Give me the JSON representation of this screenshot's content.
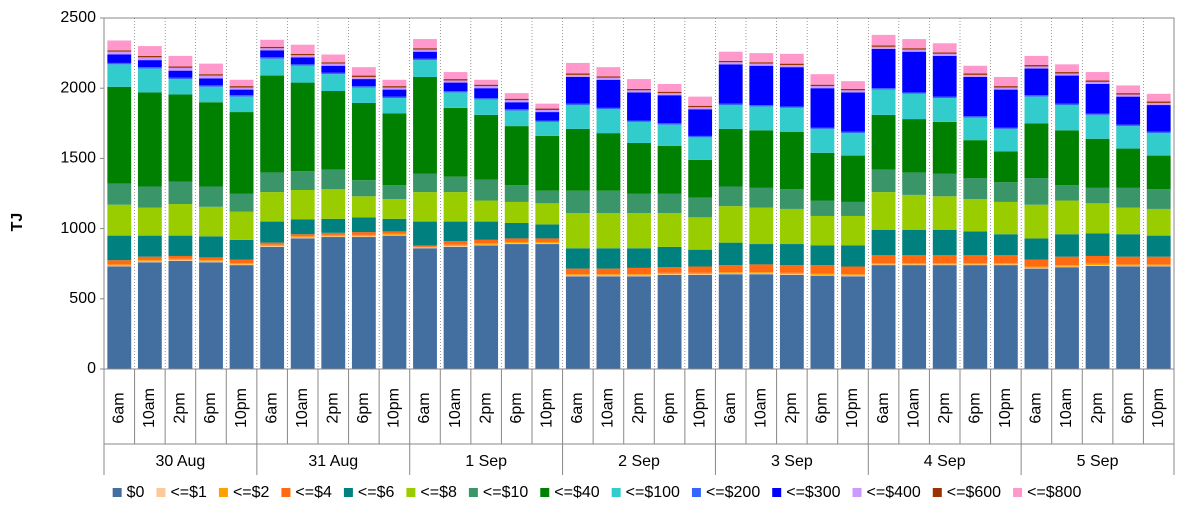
{
  "chart_data": {
    "type": "bar",
    "stacked": true,
    "y_label": "TJ",
    "categories": [
      "6am",
      "10am",
      "2pm",
      "6pm",
      "10pm",
      "6am",
      "10am",
      "2pm",
      "6pm",
      "10pm",
      "6am",
      "10am",
      "2pm",
      "6pm",
      "10pm",
      "6am",
      "10am",
      "2pm",
      "6pm",
      "10pm",
      "6am",
      "10am",
      "2pm",
      "6pm",
      "10pm",
      "6am",
      "10am",
      "2pm",
      "6pm",
      "10pm",
      "6am",
      "10am",
      "2pm",
      "6pm",
      "10pm"
    ],
    "groups": [
      "30 Aug",
      "31 Aug",
      "1 Sep",
      "2 Sep",
      "3 Sep",
      "4 Sep",
      "5 Sep"
    ],
    "ylim": [
      0,
      2500
    ],
    "yticks": [
      0,
      500,
      1000,
      1500,
      2000,
      2500
    ],
    "series": [
      {
        "name": "$0",
        "color": "#426ea0",
        "values": [
          730,
          760,
          770,
          760,
          740,
          870,
          930,
          940,
          940,
          950,
          860,
          870,
          880,
          890,
          890,
          660,
          660,
          660,
          670,
          670,
          675,
          675,
          670,
          665,
          660,
          740,
          740,
          740,
          740,
          740,
          715,
          725,
          735,
          730,
          730
        ]
      },
      {
        "name": "<=$1",
        "color": "#fcc99b",
        "values": [
          5,
          5,
          5,
          5,
          5,
          5,
          5,
          5,
          5,
          5,
          5,
          5,
          5,
          5,
          5,
          5,
          5,
          5,
          5,
          5,
          5,
          5,
          5,
          5,
          5,
          5,
          5,
          5,
          5,
          5,
          5,
          5,
          5,
          5,
          5
        ]
      },
      {
        "name": "<=$2",
        "color": "#ffa200",
        "values": [
          10,
          10,
          10,
          10,
          10,
          10,
          10,
          10,
          10,
          10,
          5,
          10,
          10,
          10,
          10,
          10,
          10,
          10,
          10,
          10,
          10,
          10,
          10,
          10,
          10,
          10,
          10,
          10,
          10,
          10,
          10,
          10,
          10,
          10,
          10
        ]
      },
      {
        "name": "<=$4",
        "color": "#ff6a13",
        "values": [
          30,
          25,
          20,
          20,
          25,
          15,
          15,
          15,
          20,
          15,
          10,
          25,
          25,
          25,
          25,
          40,
          40,
          45,
          40,
          45,
          50,
          55,
          55,
          60,
          55,
          55,
          55,
          55,
          55,
          55,
          50,
          60,
          55,
          55,
          55
        ]
      },
      {
        "name": "<=$6",
        "color": "#00807f",
        "values": [
          175,
          150,
          145,
          150,
          140,
          150,
          105,
          100,
          105,
          90,
          170,
          140,
          130,
          110,
          100,
          145,
          145,
          140,
          145,
          120,
          160,
          145,
          150,
          140,
          150,
          180,
          180,
          180,
          170,
          150,
          150,
          160,
          160,
          160,
          150
        ]
      },
      {
        "name": "<=$8",
        "color": "#9acd00",
        "values": [
          220,
          200,
          225,
          210,
          200,
          210,
          210,
          210,
          150,
          140,
          210,
          210,
          150,
          150,
          150,
          250,
          250,
          250,
          240,
          230,
          260,
          260,
          250,
          210,
          210,
          270,
          250,
          240,
          230,
          230,
          240,
          240,
          215,
          190,
          190
        ]
      },
      {
        "name": "<=$10",
        "color": "#3a9568",
        "values": [
          150,
          150,
          160,
          145,
          130,
          140,
          135,
          140,
          115,
          100,
          130,
          110,
          150,
          120,
          90,
          160,
          160,
          140,
          140,
          140,
          140,
          140,
          140,
          110,
          100,
          160,
          160,
          160,
          150,
          140,
          190,
          110,
          110,
          140,
          140
        ]
      },
      {
        "name": "<=$40",
        "color": "#008000",
        "values": [
          690,
          670,
          620,
          600,
          580,
          690,
          630,
          560,
          550,
          510,
          690,
          490,
          460,
          420,
          390,
          440,
          410,
          360,
          340,
          270,
          410,
          410,
          410,
          340,
          330,
          390,
          380,
          370,
          270,
          220,
          390,
          390,
          350,
          280,
          240
        ]
      },
      {
        "name": "<=$100",
        "color": "#33cccc",
        "values": [
          160,
          170,
          110,
          110,
          110,
          120,
          120,
          120,
          110,
          110,
          120,
          110,
          110,
          110,
          100,
          170,
          170,
          150,
          150,
          160,
          170,
          170,
          170,
          170,
          160,
          180,
          180,
          170,
          160,
          160,
          190,
          180,
          170,
          160,
          160
        ]
      },
      {
        "name": "<=$200",
        "color": "#3366ff",
        "values": [
          10,
          10,
          10,
          10,
          10,
          10,
          10,
          10,
          10,
          10,
          10,
          10,
          10,
          10,
          10,
          10,
          10,
          10,
          10,
          10,
          10,
          10,
          10,
          10,
          10,
          10,
          10,
          10,
          10,
          10,
          10,
          10,
          10,
          10,
          10
        ]
      },
      {
        "name": "<=$300",
        "color": "#0000ff",
        "values": [
          60,
          50,
          50,
          50,
          40,
          50,
          50,
          50,
          50,
          50,
          50,
          60,
          70,
          50,
          60,
          190,
          200,
          200,
          200,
          190,
          280,
          280,
          280,
          280,
          280,
          280,
          290,
          290,
          280,
          270,
          190,
          200,
          210,
          200,
          190
        ]
      },
      {
        "name": "<=$400",
        "color": "#cc99ff",
        "values": [
          20,
          20,
          20,
          20,
          15,
          15,
          15,
          15,
          15,
          15,
          15,
          15,
          15,
          15,
          15,
          15,
          15,
          15,
          15,
          15,
          15,
          15,
          15,
          15,
          15,
          15,
          15,
          15,
          15,
          15,
          15,
          15,
          15,
          15,
          15
        ]
      },
      {
        "name": "<=$600",
        "color": "#993300",
        "values": [
          10,
          10,
          10,
          10,
          10,
          10,
          10,
          10,
          10,
          10,
          10,
          10,
          10,
          10,
          10,
          10,
          10,
          10,
          10,
          10,
          10,
          10,
          10,
          10,
          10,
          10,
          10,
          10,
          10,
          10,
          10,
          10,
          10,
          10,
          10
        ]
      },
      {
        "name": "<=$800",
        "color": "#ff99cc",
        "values": [
          70,
          70,
          75,
          75,
          45,
          50,
          65,
          55,
          60,
          45,
          65,
          50,
          35,
          40,
          35,
          75,
          65,
          70,
          55,
          65,
          65,
          65,
          70,
          75,
          55,
          75,
          65,
          65,
          55,
          65,
          65,
          55,
          60,
          55,
          55
        ]
      }
    ]
  }
}
